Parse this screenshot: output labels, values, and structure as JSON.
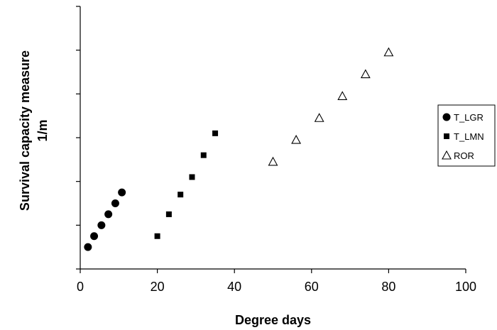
{
  "chart_data": {
    "type": "scatter",
    "xlabel": "Degree days",
    "ylabel_lines": [
      "Survival capacity measure",
      "1/m"
    ],
    "xlim": [
      0,
      100
    ],
    "x_ticks": [
      "0",
      "20",
      "40",
      "60",
      "80",
      "100"
    ],
    "y_tick_count": 6,
    "y_tick_labels_visible": false,
    "grid": false,
    "legend": "right",
    "series": [
      {
        "name": "T_LGR",
        "marker": "filled-circle",
        "color": "#000000",
        "points": [
          [
            2,
            1
          ],
          [
            3.6,
            1.5
          ],
          [
            5.5,
            2
          ],
          [
            7.3,
            2.5
          ],
          [
            9.1,
            3
          ],
          [
            10.8,
            3.5
          ]
        ]
      },
      {
        "name": "T_LMN",
        "marker": "filled-square",
        "color": "#000000",
        "points": [
          [
            20,
            1.5
          ],
          [
            23,
            2.5
          ],
          [
            26,
            3.4
          ],
          [
            29,
            4.2
          ],
          [
            32,
            5.2
          ],
          [
            35,
            6.2
          ]
        ]
      },
      {
        "name": "ROR",
        "marker": "open-triangle",
        "color": "#000000",
        "points": [
          [
            50,
            4.9
          ],
          [
            56,
            5.9
          ],
          [
            62,
            6.9
          ],
          [
            68,
            7.9
          ],
          [
            74,
            8.9
          ],
          [
            80,
            9.9
          ]
        ]
      }
    ]
  }
}
